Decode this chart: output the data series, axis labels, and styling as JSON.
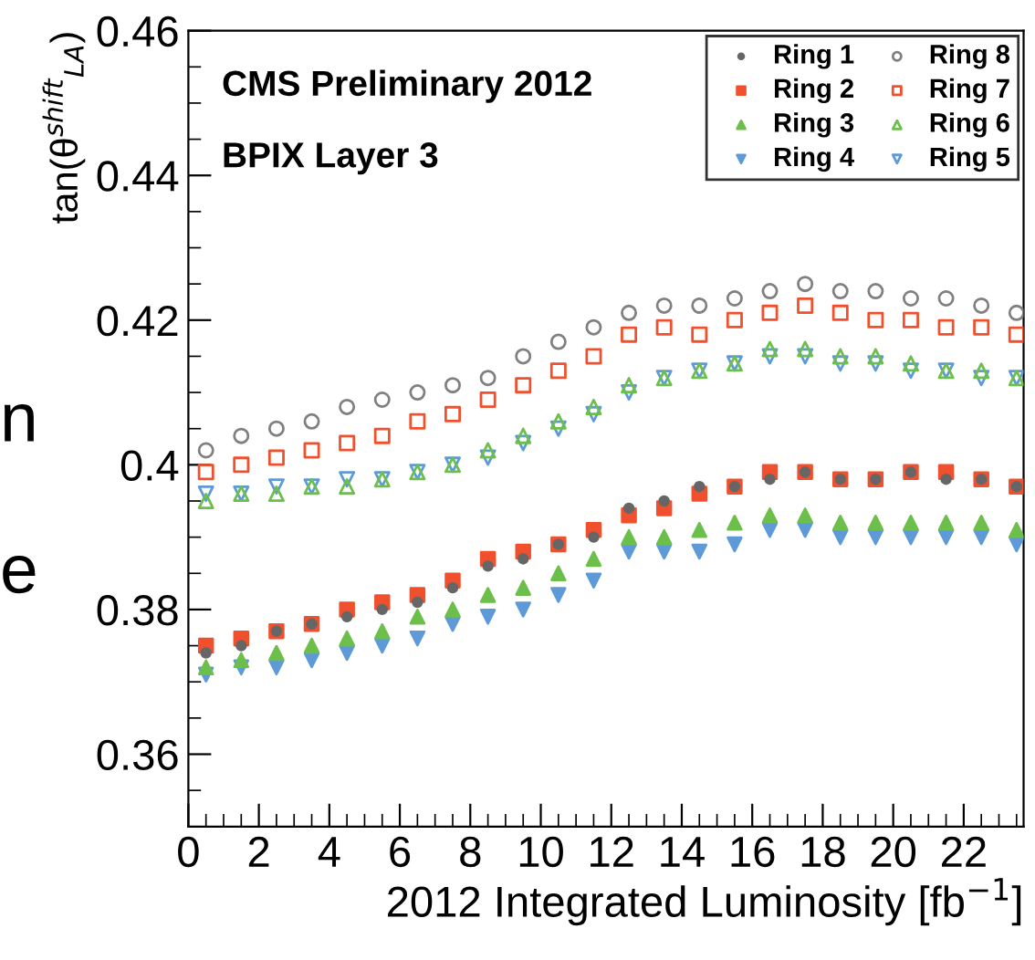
{
  "chart_data": {
    "type": "scatter",
    "xlabel": "2012 Integrated Luminosity [fb$^{−1}$]",
    "ylabel": "tan(θ$^{shift}$$_{LA}$)",
    "annotations": [
      "CMS Preliminary 2012",
      "BPIX Layer 3",
      "n",
      "e"
    ],
    "x": [
      0.5,
      1.5,
      2.5,
      3.5,
      4.5,
      5.5,
      6.5,
      7.5,
      8.5,
      9.5,
      10.5,
      11.5,
      12.5,
      13.5,
      14.5,
      15.5,
      16.5,
      17.5,
      18.5,
      19.5,
      20.5,
      21.5,
      22.5,
      23.5
    ],
    "series": [
      {
        "name": "Ring 1",
        "color": "#666666",
        "marker": "circle",
        "values": [
          0.374,
          0.375,
          0.377,
          0.378,
          0.379,
          0.38,
          0.381,
          0.383,
          0.386,
          0.387,
          0.389,
          0.39,
          0.394,
          0.395,
          0.397,
          0.397,
          0.398,
          0.399,
          0.398,
          0.398,
          0.399,
          0.398,
          0.398,
          0.397
        ]
      },
      {
        "name": "Ring 2",
        "color": "#f0502d",
        "marker": "square",
        "values": [
          0.375,
          0.376,
          0.377,
          0.378,
          0.38,
          0.381,
          0.382,
          0.384,
          0.387,
          0.388,
          0.389,
          0.391,
          0.393,
          0.394,
          0.396,
          0.397,
          0.399,
          0.399,
          0.398,
          0.398,
          0.399,
          0.399,
          0.398,
          0.397
        ]
      },
      {
        "name": "Ring 3",
        "color": "#6cbf4a",
        "marker": "triangle",
        "values": [
          0.372,
          0.373,
          0.374,
          0.375,
          0.376,
          0.377,
          0.379,
          0.38,
          0.382,
          0.383,
          0.385,
          0.387,
          0.39,
          0.39,
          0.391,
          0.392,
          0.393,
          0.393,
          0.392,
          0.392,
          0.392,
          0.392,
          0.392,
          0.391
        ]
      },
      {
        "name": "Ring 4",
        "color": "#5f9ad8",
        "marker": "triangle_down",
        "values": [
          0.371,
          0.372,
          0.372,
          0.373,
          0.374,
          0.375,
          0.376,
          0.378,
          0.379,
          0.38,
          0.382,
          0.384,
          0.388,
          0.388,
          0.388,
          0.389,
          0.391,
          0.391,
          0.39,
          0.39,
          0.39,
          0.39,
          0.39,
          0.389
        ]
      },
      {
        "name": "Ring 8",
        "color": "#808080",
        "marker": "circle-open",
        "values": [
          0.402,
          0.404,
          0.405,
          0.406,
          0.408,
          0.409,
          0.41,
          0.411,
          0.412,
          0.415,
          0.417,
          0.419,
          0.421,
          0.422,
          0.422,
          0.423,
          0.424,
          0.425,
          0.424,
          0.424,
          0.423,
          0.423,
          0.422,
          0.421
        ]
      },
      {
        "name": "Ring 7",
        "color": "#f0502d",
        "marker": "square-open",
        "values": [
          0.399,
          0.4,
          0.401,
          0.402,
          0.403,
          0.404,
          0.406,
          0.407,
          0.409,
          0.411,
          0.413,
          0.415,
          0.418,
          0.419,
          0.418,
          0.42,
          0.421,
          0.422,
          0.421,
          0.42,
          0.42,
          0.419,
          0.419,
          0.418
        ]
      },
      {
        "name": "Ring 6",
        "color": "#6cbf4a",
        "marker": "triangle-open",
        "values": [
          0.395,
          0.396,
          0.396,
          0.397,
          0.397,
          0.398,
          0.399,
          0.4,
          0.402,
          0.404,
          0.406,
          0.408,
          0.411,
          0.412,
          0.413,
          0.414,
          0.416,
          0.416,
          0.415,
          0.415,
          0.414,
          0.413,
          0.413,
          0.412
        ]
      },
      {
        "name": "Ring 5",
        "color": "#5f9ad8",
        "marker": "triangle_down-open",
        "values": [
          0.396,
          0.396,
          0.397,
          0.397,
          0.398,
          0.398,
          0.399,
          0.4,
          0.401,
          0.403,
          0.405,
          0.407,
          0.41,
          0.412,
          0.413,
          0.414,
          0.415,
          0.415,
          0.414,
          0.414,
          0.413,
          0.413,
          0.412,
          0.412
        ]
      }
    ],
    "xlim": [
      0,
      23.7
    ],
    "xticks": [
      0,
      2,
      4,
      6,
      8,
      10,
      12,
      14,
      16,
      18,
      20,
      22
    ],
    "ylim": [
      0.35,
      0.46
    ],
    "yticks": [
      0.36,
      0.38,
      {
        "value": 0.4,
        "label": "0.4"
      },
      0.42,
      0.44,
      0.46
    ],
    "grid": false,
    "legend": "top right"
  }
}
